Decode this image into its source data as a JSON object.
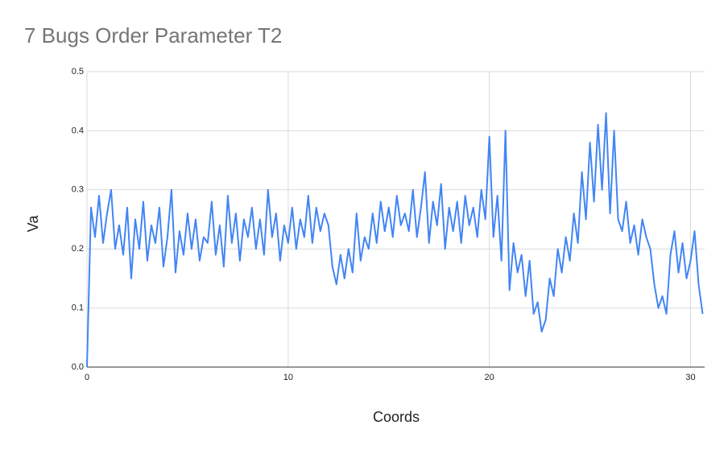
{
  "chart_data": {
    "type": "line",
    "title": "7 Bugs Order Parameter T2",
    "x_label": "Coords",
    "y_label": "Va",
    "xlim": [
      0,
      30.7
    ],
    "ylim": [
      0,
      0.5
    ],
    "xticks": [
      0,
      10,
      20,
      30
    ],
    "yticks": [
      {
        "value": 0,
        "label": "0.0"
      },
      0.1,
      0.2,
      0.3,
      0.4,
      0.5
    ],
    "grid": true,
    "x": [
      0,
      0.2,
      0.4,
      0.6,
      0.8,
      1,
      1.2,
      1.4,
      1.6,
      1.8,
      2,
      2.2,
      2.4,
      2.6,
      2.8,
      3,
      3.2,
      3.4,
      3.6,
      3.8,
      4,
      4.2,
      4.4,
      4.6,
      4.8,
      5,
      5.2,
      5.4,
      5.6,
      5.8,
      6,
      6.2,
      6.4,
      6.6,
      6.8,
      7,
      7.2,
      7.4,
      7.6,
      7.8,
      8,
      8.2,
      8.4,
      8.6,
      8.8,
      9,
      9.2,
      9.4,
      9.6,
      9.8,
      10,
      10.2,
      10.4,
      10.6,
      10.8,
      11,
      11.2,
      11.4,
      11.6,
      11.8,
      12,
      12.2,
      12.4,
      12.6,
      12.8,
      13,
      13.2,
      13.4,
      13.6,
      13.8,
      14,
      14.2,
      14.4,
      14.6,
      14.8,
      15,
      15.2,
      15.4,
      15.6,
      15.8,
      16,
      16.2,
      16.4,
      16.6,
      16.8,
      17,
      17.2,
      17.4,
      17.6,
      17.8,
      18,
      18.2,
      18.4,
      18.6,
      18.8,
      19,
      19.2,
      19.4,
      19.6,
      19.8,
      20,
      20.2,
      20.4,
      20.6,
      20.8,
      21,
      21.2,
      21.4,
      21.6,
      21.8,
      22,
      22.2,
      22.4,
      22.6,
      22.8,
      23,
      23.2,
      23.4,
      23.6,
      23.8,
      24,
      24.2,
      24.4,
      24.6,
      24.8,
      25,
      25.2,
      25.4,
      25.6,
      25.8,
      26,
      26.2,
      26.4,
      26.6,
      26.8,
      27,
      27.2,
      27.4,
      27.6,
      27.8,
      28,
      28.2,
      28.4,
      28.6,
      28.8,
      29,
      29.2,
      29.4,
      29.6,
      29.8,
      30,
      30.2,
      30.4,
      30.6
    ],
    "series": [
      {
        "name": "Va",
        "color": "#4285f4",
        "values": [
          0,
          0.27,
          0.22,
          0.29,
          0.21,
          0.26,
          0.3,
          0.2,
          0.24,
          0.19,
          0.27,
          0.15,
          0.25,
          0.2,
          0.28,
          0.18,
          0.24,
          0.21,
          0.27,
          0.17,
          0.22,
          0.3,
          0.16,
          0.23,
          0.19,
          0.26,
          0.2,
          0.25,
          0.18,
          0.22,
          0.21,
          0.28,
          0.19,
          0.24,
          0.17,
          0.29,
          0.21,
          0.26,
          0.18,
          0.25,
          0.22,
          0.27,
          0.2,
          0.25,
          0.19,
          0.3,
          0.22,
          0.26,
          0.18,
          0.24,
          0.21,
          0.27,
          0.2,
          0.25,
          0.22,
          0.29,
          0.21,
          0.27,
          0.23,
          0.26,
          0.24,
          0.17,
          0.14,
          0.19,
          0.15,
          0.2,
          0.16,
          0.26,
          0.18,
          0.22,
          0.2,
          0.26,
          0.21,
          0.28,
          0.23,
          0.27,
          0.22,
          0.29,
          0.24,
          0.26,
          0.23,
          0.3,
          0.22,
          0.27,
          0.33,
          0.21,
          0.28,
          0.24,
          0.31,
          0.2,
          0.27,
          0.23,
          0.28,
          0.21,
          0.29,
          0.24,
          0.27,
          0.22,
          0.3,
          0.25,
          0.39,
          0.22,
          0.29,
          0.18,
          0.4,
          0.13,
          0.21,
          0.16,
          0.19,
          0.12,
          0.18,
          0.09,
          0.11,
          0.06,
          0.08,
          0.15,
          0.12,
          0.2,
          0.16,
          0.22,
          0.18,
          0.26,
          0.21,
          0.33,
          0.25,
          0.38,
          0.28,
          0.41,
          0.3,
          0.43,
          0.26,
          0.4,
          0.25,
          0.23,
          0.28,
          0.21,
          0.24,
          0.19,
          0.25,
          0.22,
          0.2,
          0.14,
          0.1,
          0.12,
          0.09,
          0.19,
          0.23,
          0.16,
          0.21,
          0.15,
          0.18,
          0.23,
          0.14,
          0.09
        ]
      }
    ]
  }
}
